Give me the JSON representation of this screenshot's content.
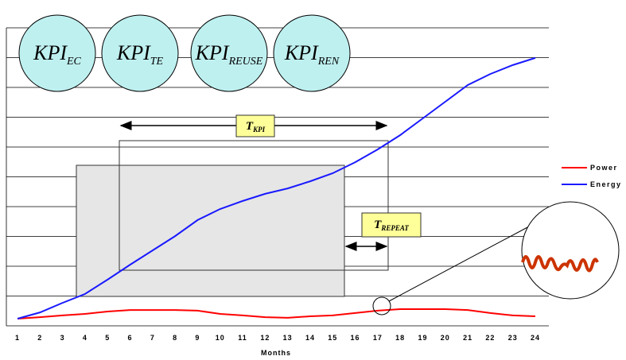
{
  "chart_data": {
    "type": "line",
    "x_label": "Months",
    "categories": [
      "1",
      "2",
      "3",
      "4",
      "5",
      "6",
      "7",
      "8",
      "9",
      "10",
      "11",
      "12",
      "13",
      "14",
      "15",
      "16",
      "17",
      "18",
      "19",
      "20",
      "21",
      "22",
      "23",
      "24"
    ],
    "ylim": [
      0,
      10
    ],
    "series": [
      {
        "name": "Power",
        "color": "#ff0000",
        "values": [
          0.24,
          0.29,
          0.35,
          0.4,
          0.48,
          0.53,
          0.53,
          0.53,
          0.51,
          0.4,
          0.35,
          0.29,
          0.27,
          0.32,
          0.35,
          0.43,
          0.51,
          0.56,
          0.56,
          0.56,
          0.53,
          0.43,
          0.35,
          0.32
        ]
      },
      {
        "name": "Energy",
        "color": "#1a1aff",
        "values": [
          0.24,
          0.45,
          0.77,
          1.07,
          1.55,
          2.05,
          2.53,
          3.01,
          3.55,
          3.92,
          4.19,
          4.43,
          4.61,
          4.85,
          5.12,
          5.49,
          5.92,
          6.4,
          6.96,
          7.52,
          8.08,
          8.45,
          8.75,
          8.99
        ]
      }
    ],
    "kpis": [
      {
        "text": "KPI",
        "sub": "EC"
      },
      {
        "text": "KPI",
        "sub": "TE"
      },
      {
        "text": "KPI",
        "sub": "REUSE"
      },
      {
        "text": "KPI",
        "sub": "REN"
      }
    ],
    "periods": [
      {
        "text": "T",
        "sub": "KPI"
      },
      {
        "text": "T",
        "sub": "REPEAT"
      }
    ]
  }
}
